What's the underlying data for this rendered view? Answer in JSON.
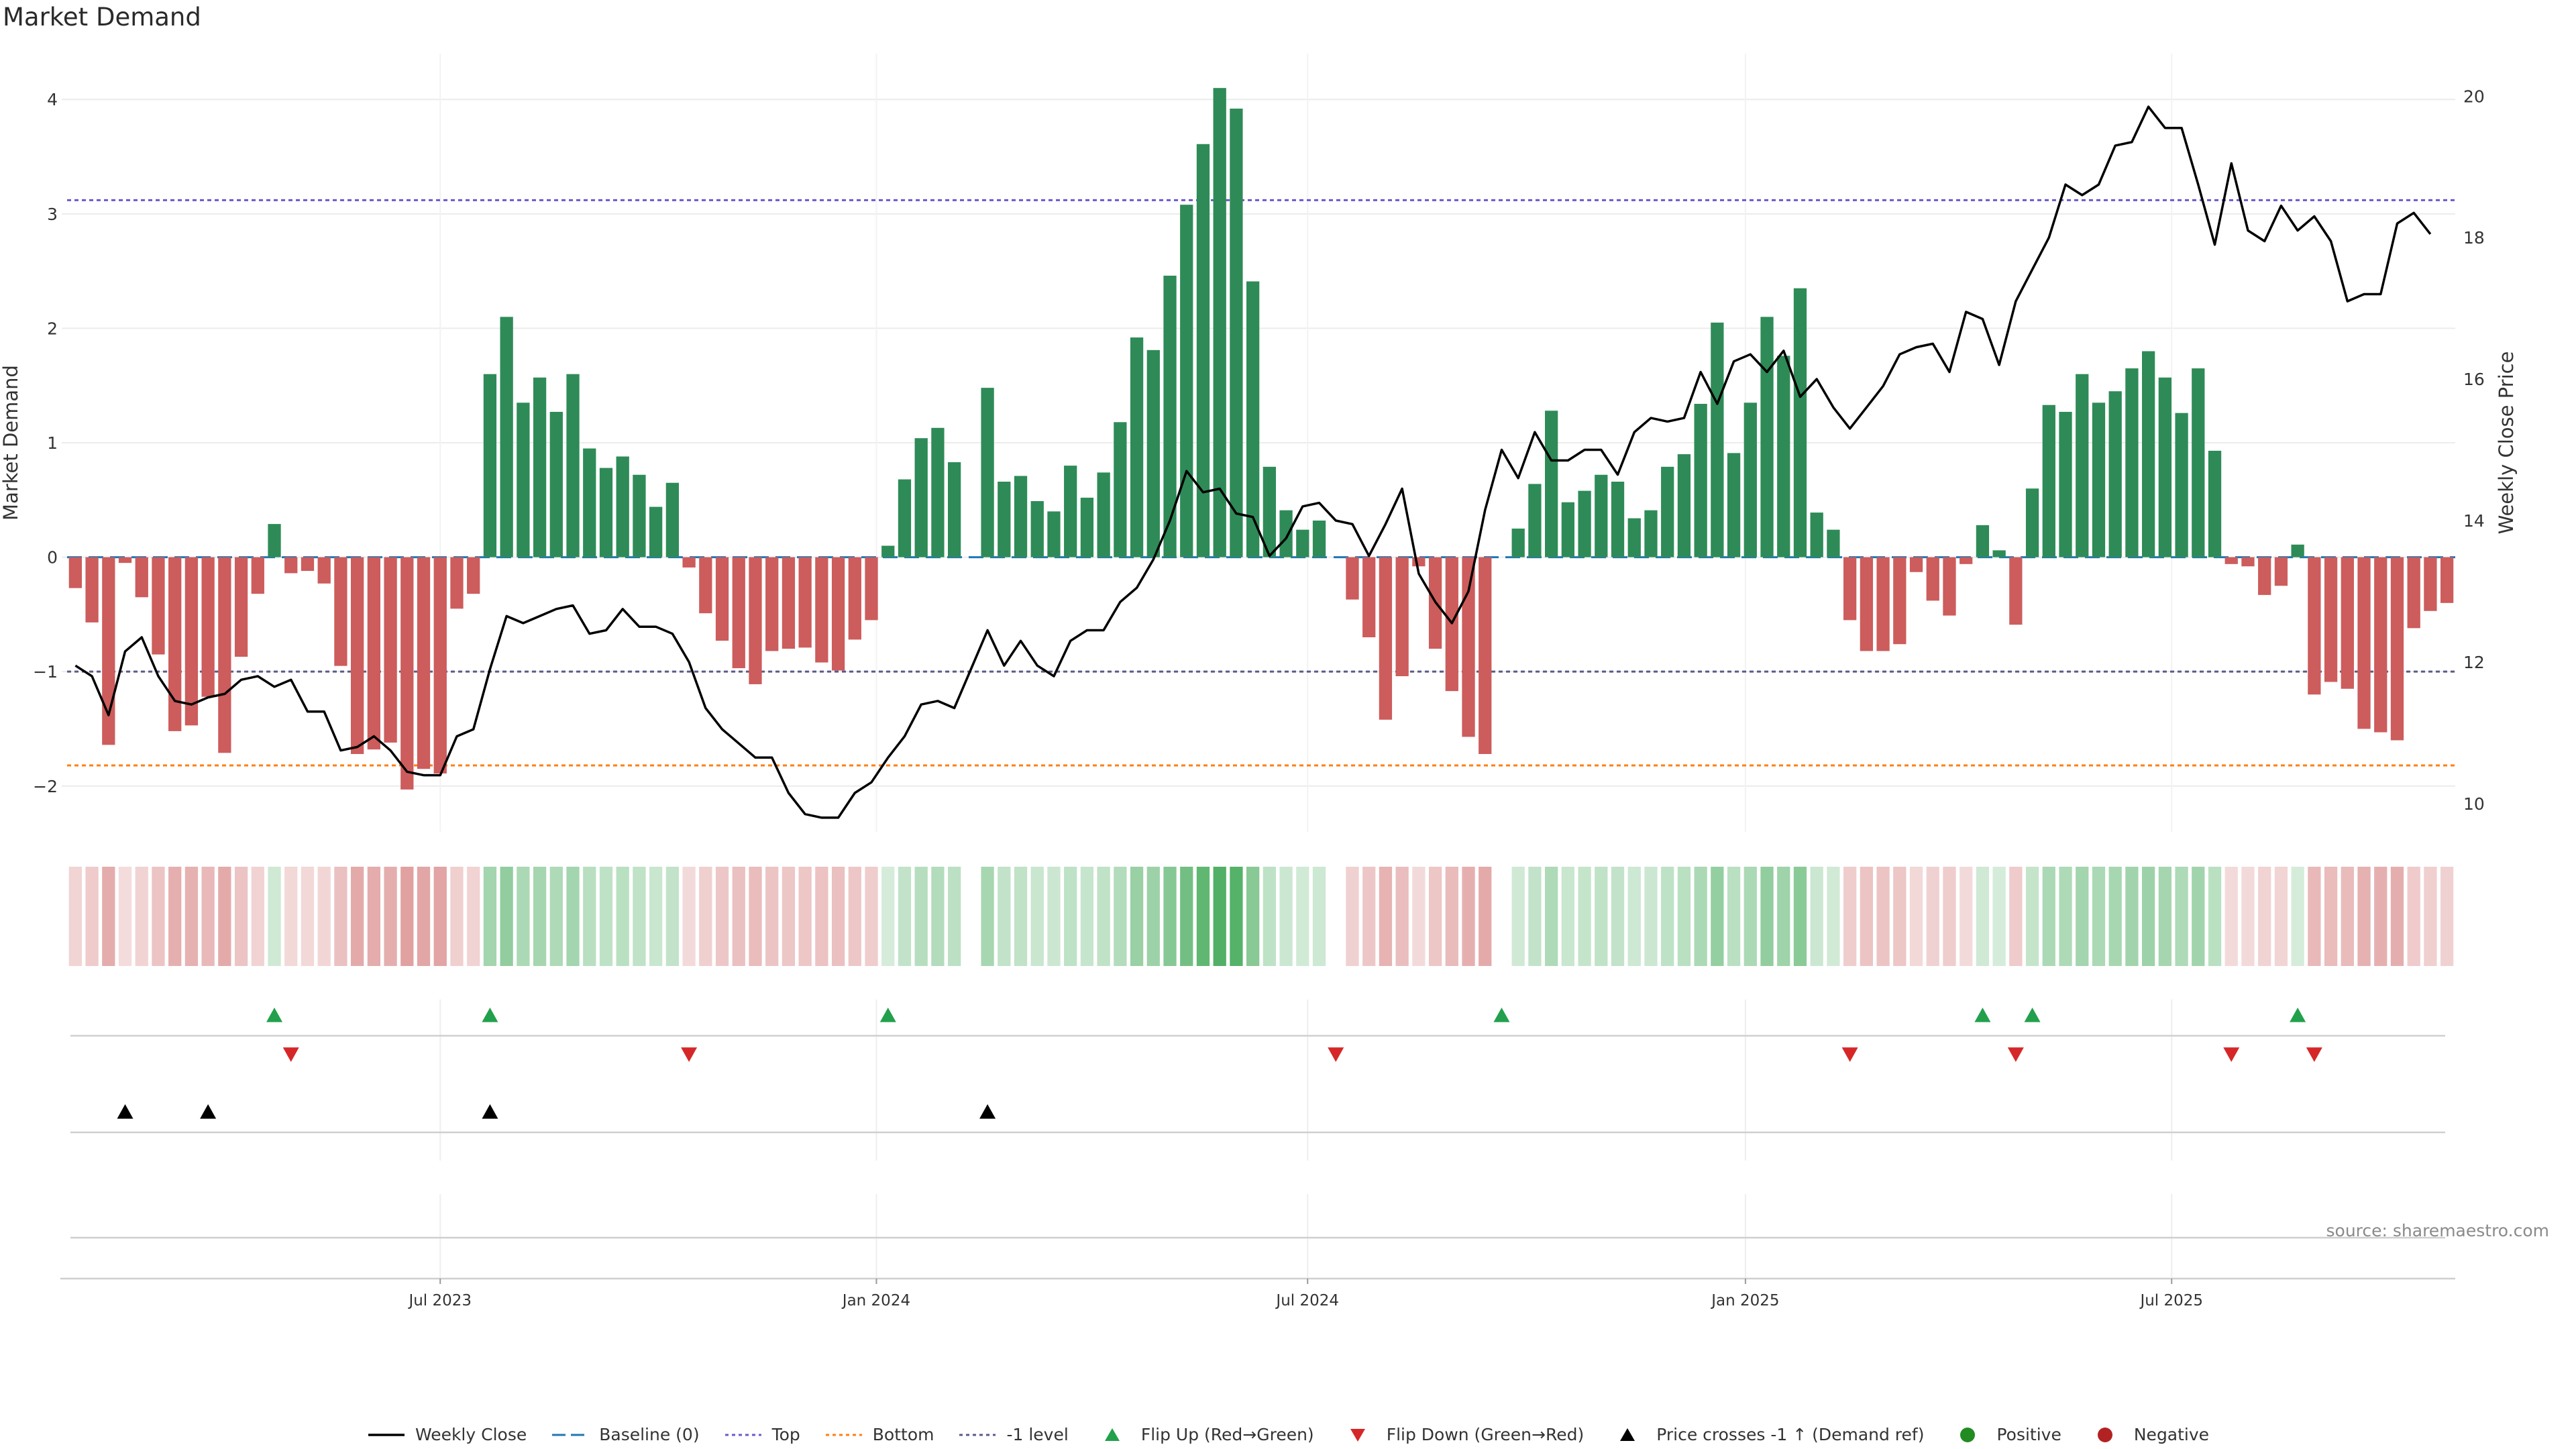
{
  "page_title": "Market Demand",
  "source_note": "source: sharemaestro.com",
  "colors": {
    "positive": "#2e8b57",
    "negative": "#cd5c5c",
    "price_line": "#000000",
    "baseline": "#1f77b4",
    "top_line": "#6a5acd",
    "bottom_line": "#ff7f0e",
    "minus_one_line": "#5a5a8a",
    "flip_up": "#22a04b",
    "flip_down": "#d62728",
    "cross_marker": "#000000",
    "positive_dot": "#228b22",
    "negative_dot": "#b22222"
  },
  "chart_data": {
    "type": "bar+line",
    "title": "Market Demand",
    "ylabel_left": "Market Demand",
    "ylabel_right": "Weekly Close Price",
    "ylim_left": [
      -2.4,
      4.4
    ],
    "ylim_right": [
      9.6,
      20.6
    ],
    "yticks_left": [
      "−2",
      "−1",
      "0",
      "1",
      "2",
      "3",
      "4"
    ],
    "yticks_left_values": [
      -2,
      -1,
      0,
      1,
      2,
      3,
      4
    ],
    "yticks_right": [
      "10",
      "12",
      "14",
      "16",
      "18",
      "20"
    ],
    "yticks_right_values": [
      10,
      12,
      14,
      16,
      18,
      20
    ],
    "x_start_week": 0,
    "x_end_week": 144,
    "x_ticks": [
      {
        "week": 22,
        "label": "Jul 2023"
      },
      {
        "week": 48.3,
        "label": "Jan 2024"
      },
      {
        "week": 74.3,
        "label": "Jul 2024"
      },
      {
        "week": 100.7,
        "label": "Jan 2025"
      },
      {
        "week": 126.4,
        "label": "Jul 2025"
      }
    ],
    "reference_lines": [
      {
        "name": "Baseline (0)",
        "value": 0
      },
      {
        "name": "Top",
        "value": 3.12
      },
      {
        "name": "Bottom",
        "value": -1.82
      },
      {
        "name": "-1 level",
        "value": -1.0
      }
    ],
    "series": [
      {
        "name": "Market Demand",
        "values": [
          -0.27,
          -0.57,
          -1.64,
          -0.05,
          -0.35,
          -0.85,
          -1.52,
          -1.47,
          -1.22,
          -1.71,
          -0.87,
          -0.32,
          0.29,
          -0.14,
          -0.12,
          -0.23,
          -0.95,
          -1.72,
          -1.68,
          -1.62,
          -2.03,
          -1.85,
          -1.89,
          -0.45,
          -0.32,
          1.6,
          2.1,
          1.35,
          1.57,
          1.27,
          1.6,
          0.95,
          0.78,
          0.88,
          0.72,
          0.44,
          0.65,
          -0.09,
          -0.49,
          -0.73,
          -0.97,
          -1.11,
          -0.82,
          -0.8,
          -0.79,
          -0.92,
          -0.99,
          -0.72,
          -0.55,
          0.1,
          0.68,
          1.04,
          1.13,
          0.83,
          null,
          1.48,
          0.66,
          0.71,
          0.49,
          0.4,
          0.8,
          0.52,
          0.74,
          1.18,
          1.92,
          1.81,
          2.46,
          3.08,
          3.61,
          4.1,
          3.92,
          2.41,
          0.79,
          0.41,
          0.24,
          0.32,
          null,
          -0.37,
          -0.7,
          -1.42,
          -1.04,
          -0.08,
          -0.8,
          -1.17,
          -1.57,
          -1.72,
          null,
          0.25,
          0.64,
          1.28,
          0.48,
          0.58,
          0.72,
          0.66,
          0.34,
          0.41,
          0.79,
          0.9,
          1.34,
          2.05,
          0.91,
          1.35,
          2.1,
          1.76,
          2.35,
          0.39,
          0.24,
          -0.55,
          -0.82,
          -0.82,
          -0.76,
          -0.13,
          -0.38,
          -0.51,
          -0.06,
          0.28,
          0.06,
          -0.59,
          0.6,
          1.33,
          1.27,
          1.6,
          1.35,
          1.45,
          1.65,
          1.8,
          1.57,
          1.26,
          1.65,
          0.93,
          -0.06,
          -0.08,
          -0.33,
          -0.25,
          0.11,
          -1.2,
          -1.09,
          -1.15,
          -1.5,
          -1.53,
          -1.6,
          -0.62,
          -0.47,
          -0.4
        ]
      },
      {
        "name": "Weekly Close",
        "values": [
          11.95,
          11.8,
          11.25,
          12.15,
          12.35,
          11.8,
          11.45,
          11.4,
          11.5,
          11.55,
          11.75,
          11.8,
          11.65,
          11.75,
          11.3,
          11.3,
          10.75,
          10.8,
          10.95,
          10.75,
          10.45,
          10.4,
          10.4,
          10.95,
          11.05,
          11.9,
          12.65,
          12.55,
          12.65,
          12.75,
          12.8,
          12.4,
          12.45,
          12.75,
          12.5,
          12.5,
          12.4,
          12.0,
          11.35,
          11.05,
          10.85,
          10.65,
          10.65,
          10.15,
          9.85,
          9.8,
          9.8,
          10.15,
          10.3,
          10.65,
          10.95,
          11.4,
          11.45,
          11.35,
          11.9,
          12.45,
          11.95,
          12.3,
          11.95,
          11.8,
          12.3,
          12.45,
          12.45,
          12.85,
          13.05,
          13.45,
          14.0,
          14.7,
          14.4,
          14.45,
          14.1,
          14.05,
          13.5,
          13.75,
          14.2,
          14.25,
          14.0,
          13.95,
          13.5,
          13.95,
          14.45,
          13.25,
          12.85,
          12.55,
          13.0,
          14.15,
          15.0,
          14.6,
          15.25,
          14.85,
          14.85,
          15.0,
          15.0,
          14.65,
          15.25,
          15.45,
          15.4,
          15.45,
          16.1,
          15.65,
          16.25,
          16.35,
          16.1,
          16.4,
          15.75,
          16.0,
          15.6,
          15.3,
          15.6,
          15.9,
          16.35,
          16.45,
          16.5,
          16.1,
          16.95,
          16.85,
          16.2,
          17.1,
          17.55,
          18.0,
          18.75,
          18.6,
          18.75,
          19.3,
          19.35,
          19.85,
          19.55,
          19.55,
          18.75,
          17.9,
          19.05,
          18.1,
          17.95,
          18.45,
          18.1,
          18.3,
          17.95,
          17.1,
          17.2,
          17.2,
          18.2,
          18.35,
          18.05
        ]
      }
    ],
    "flip_up_weeks": [
      12,
      25,
      49,
      86,
      115,
      118,
      134
    ],
    "flip_down_weeks": [
      13,
      37,
      76,
      107,
      117,
      130,
      135
    ],
    "price_cross_weeks": [
      3,
      8,
      25,
      55
    ],
    "legend": [
      {
        "key": "weekly_close",
        "label": "Weekly Close"
      },
      {
        "key": "baseline",
        "label": "Baseline (0)"
      },
      {
        "key": "top",
        "label": "Top"
      },
      {
        "key": "bottom",
        "label": "Bottom"
      },
      {
        "key": "minus_one",
        "label": "-1 level"
      },
      {
        "key": "flip_up",
        "label": "Flip Up (Red→Green)"
      },
      {
        "key": "flip_down",
        "label": "Flip Down (Green→Red)"
      },
      {
        "key": "price_cross",
        "label": "Price crosses -1 ↑ (Demand ref)"
      },
      {
        "key": "positive",
        "label": "Positive"
      },
      {
        "key": "negative",
        "label": "Negative"
      }
    ],
    "legend_position": "bottom-center"
  }
}
